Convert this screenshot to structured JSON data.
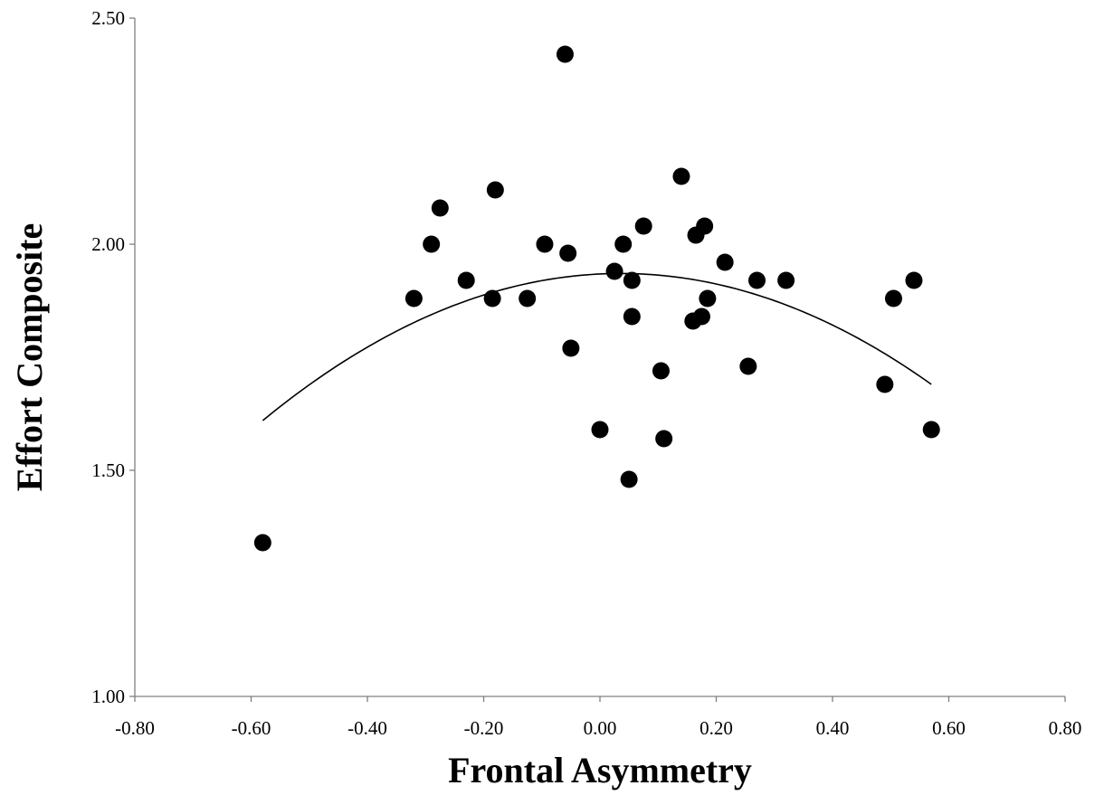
{
  "chart_data": {
    "type": "scatter",
    "xlabel": "Frontal Asymmetry",
    "ylabel": "Effort Composite",
    "xlim": [
      -0.8,
      0.8
    ],
    "ylim": [
      1.0,
      2.5
    ],
    "x_ticks": [
      "-0.80",
      "-0.60",
      "-0.40",
      "-0.20",
      "0.00",
      "0.20",
      "0.40",
      "0.60",
      "0.80"
    ],
    "y_ticks": [
      "1.00",
      "1.50",
      "2.00",
      "2.50"
    ],
    "grid": false,
    "legend": "none",
    "points": [
      {
        "x": -0.58,
        "y": 1.34
      },
      {
        "x": -0.32,
        "y": 1.88
      },
      {
        "x": -0.29,
        "y": 2.0
      },
      {
        "x": -0.275,
        "y": 2.08
      },
      {
        "x": -0.23,
        "y": 1.92
      },
      {
        "x": -0.185,
        "y": 1.88
      },
      {
        "x": -0.18,
        "y": 2.12
      },
      {
        "x": -0.125,
        "y": 1.88
      },
      {
        "x": -0.095,
        "y": 2.0
      },
      {
        "x": -0.06,
        "y": 2.42
      },
      {
        "x": -0.055,
        "y": 1.98
      },
      {
        "x": -0.05,
        "y": 1.77
      },
      {
        "x": 0.0,
        "y": 1.59
      },
      {
        "x": 0.025,
        "y": 1.94
      },
      {
        "x": 0.04,
        "y": 2.0
      },
      {
        "x": 0.05,
        "y": 1.48
      },
      {
        "x": 0.055,
        "y": 1.92
      },
      {
        "x": 0.055,
        "y": 1.84
      },
      {
        "x": 0.075,
        "y": 2.04
      },
      {
        "x": 0.105,
        "y": 1.72
      },
      {
        "x": 0.11,
        "y": 1.57
      },
      {
        "x": 0.14,
        "y": 2.15
      },
      {
        "x": 0.16,
        "y": 1.83
      },
      {
        "x": 0.165,
        "y": 2.02
      },
      {
        "x": 0.175,
        "y": 1.84
      },
      {
        "x": 0.18,
        "y": 2.04
      },
      {
        "x": 0.185,
        "y": 1.88
      },
      {
        "x": 0.215,
        "y": 1.96
      },
      {
        "x": 0.255,
        "y": 1.73
      },
      {
        "x": 0.27,
        "y": 1.92
      },
      {
        "x": 0.32,
        "y": 1.92
      },
      {
        "x": 0.49,
        "y": 1.69
      },
      {
        "x": 0.505,
        "y": 1.88
      },
      {
        "x": 0.54,
        "y": 1.92
      },
      {
        "x": 0.57,
        "y": 1.59
      }
    ],
    "trendline": {
      "type": "polynomial",
      "order": 2,
      "x_range": [
        -0.58,
        0.57
      ],
      "through": [
        {
          "x": -0.58,
          "y": 1.61
        },
        {
          "x": 0.05,
          "y": 1.935
        },
        {
          "x": 0.57,
          "y": 1.69
        }
      ]
    }
  }
}
